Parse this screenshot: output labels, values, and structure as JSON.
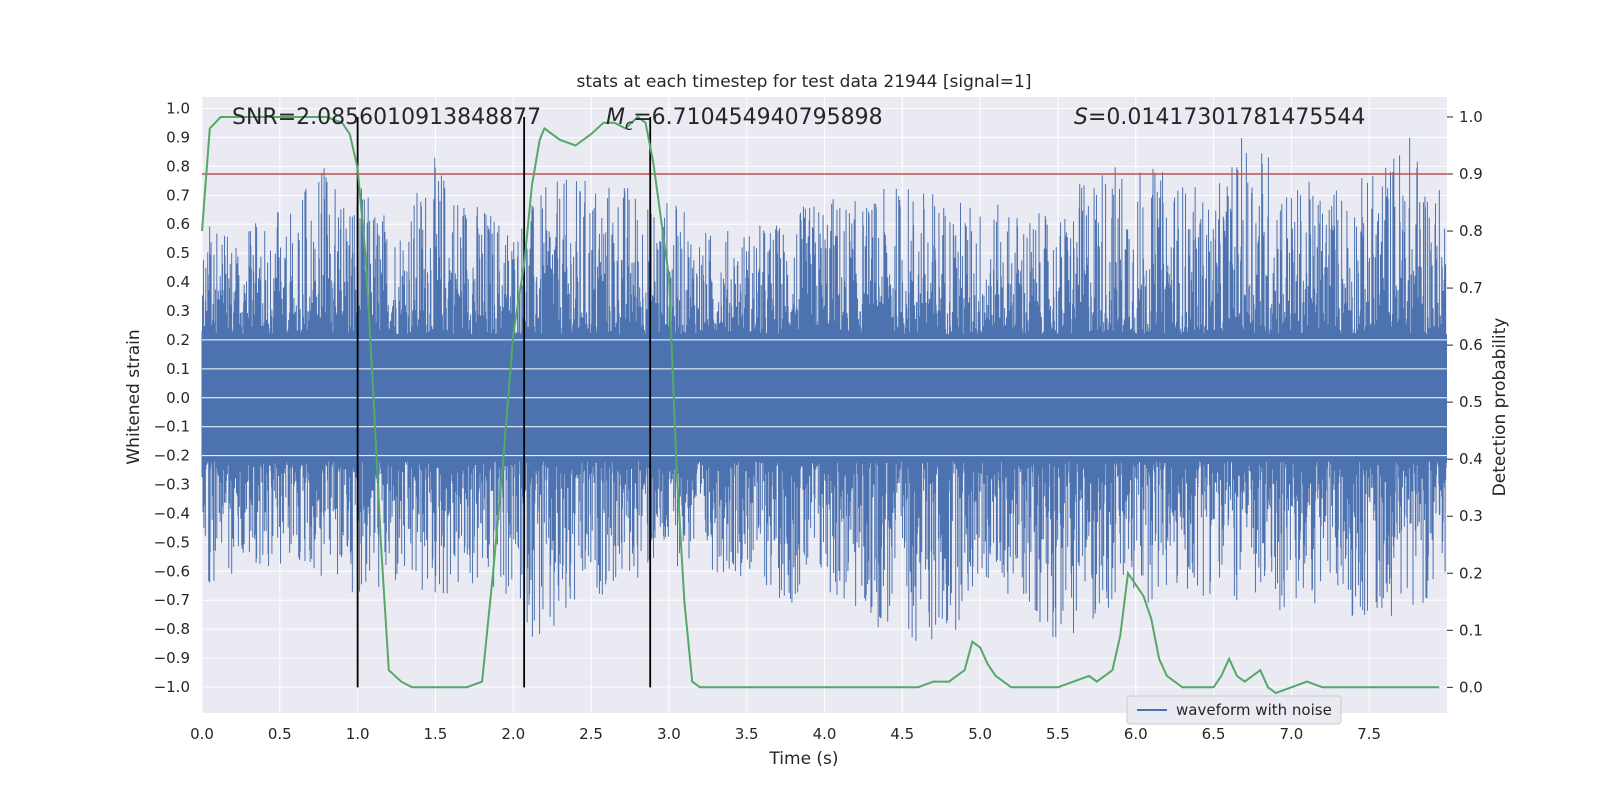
{
  "chart_data": {
    "type": "line",
    "title": "stats at each timestep for test data 21944 [signal=1]",
    "xlabel": "Time (s)",
    "ylabel": "Whitened strain",
    "y2label": "Detection probability",
    "xlim": [
      0.0,
      8.0
    ],
    "ylim": [
      -1.09,
      1.04
    ],
    "y2lim": [
      -0.045,
      1.035
    ],
    "x_ticks": [
      "0.0",
      "0.5",
      "1.0",
      "1.5",
      "2.0",
      "2.5",
      "3.0",
      "3.5",
      "4.0",
      "4.5",
      "5.0",
      "5.5",
      "6.0",
      "6.5",
      "7.0",
      "7.5"
    ],
    "y_ticks": [
      "1.0",
      "0.9",
      "0.8",
      "0.7",
      "0.6",
      "0.5",
      "0.4",
      "0.3",
      "0.2",
      "0.1",
      "0.0",
      "-0.1",
      "-0.2",
      "-0.3",
      "-0.4",
      "-0.5",
      "-0.6",
      "-0.7",
      "-0.8",
      "-0.9",
      "-1.0"
    ],
    "y2_ticks": [
      "1.0",
      "0.9",
      "0.8",
      "0.7",
      "0.6",
      "0.5",
      "0.4",
      "0.3",
      "0.2",
      "0.1",
      "0.0"
    ],
    "annotations": {
      "snr": "SNR=2.0856010913848877",
      "mc_symbol": "M",
      "mc_sub": "c",
      "mc_value": "=6.710454940795898",
      "s_symbol": "S",
      "s_value": "=0.01417301781475544"
    },
    "legend": {
      "entries": [
        "waveform with noise"
      ],
      "position": "lower-right"
    },
    "threshold_probability": 0.9,
    "vertical_markers_s": [
      1.0,
      2.07,
      2.88
    ],
    "series": [
      {
        "name": "waveform with noise",
        "color": "#4c72b0",
        "axis": "left",
        "envelope": {
          "x": [
            0.0,
            0.25,
            0.5,
            0.75,
            1.0,
            1.25,
            1.5,
            1.75,
            2.0,
            2.25,
            2.5,
            2.75,
            3.0,
            3.25,
            3.5,
            3.75,
            4.0,
            4.25,
            4.5,
            4.75,
            5.0,
            5.25,
            5.5,
            5.75,
            6.0,
            6.25,
            6.5,
            6.75,
            7.0,
            7.25,
            7.5,
            7.75,
            8.0
          ],
          "max": [
            0.6,
            0.58,
            0.65,
            0.8,
            0.75,
            0.62,
            0.84,
            0.7,
            0.62,
            0.75,
            0.78,
            0.76,
            0.7,
            0.58,
            0.6,
            0.62,
            0.72,
            0.68,
            0.76,
            0.72,
            0.68,
            0.66,
            0.62,
            0.84,
            0.82,
            0.78,
            0.7,
            0.98,
            0.74,
            0.76,
            0.78,
            0.94,
            0.68
          ],
          "min": [
            -0.65,
            -0.6,
            -0.58,
            -0.64,
            -0.68,
            -0.7,
            -0.72,
            -0.68,
            -0.72,
            -0.95,
            -0.7,
            -0.65,
            -0.58,
            -0.6,
            -0.62,
            -0.72,
            -0.68,
            -0.8,
            -0.82,
            -0.9,
            -0.65,
            -0.7,
            -0.85,
            -0.78,
            -0.72,
            -0.7,
            -0.68,
            -0.74,
            -0.76,
            -0.7,
            -0.8,
            -0.72,
            -0.7
          ]
        }
      },
      {
        "name": "",
        "color": "#55a868",
        "axis": "right",
        "x": [
          0.0,
          0.05,
          0.12,
          0.2,
          0.3,
          0.4,
          0.5,
          0.6,
          0.7,
          0.8,
          0.9,
          0.95,
          1.0,
          1.05,
          1.1,
          1.15,
          1.2,
          1.28,
          1.35,
          1.4,
          1.5,
          1.6,
          1.7,
          1.8,
          1.87,
          1.93,
          2.0,
          2.07,
          2.12,
          2.17,
          2.2,
          2.3,
          2.4,
          2.5,
          2.58,
          2.65,
          2.72,
          2.8,
          2.85,
          2.9,
          2.95,
          3.0,
          3.05,
          3.1,
          3.15,
          3.2,
          3.3,
          3.4,
          3.5,
          3.6,
          3.7,
          3.8,
          3.9,
          4.0,
          4.2,
          4.4,
          4.6,
          4.7,
          4.8,
          4.9,
          4.95,
          5.0,
          5.05,
          5.1,
          5.2,
          5.3,
          5.4,
          5.5,
          5.6,
          5.7,
          5.75,
          5.8,
          5.85,
          5.9,
          5.95,
          6.0,
          6.05,
          6.1,
          6.15,
          6.2,
          6.3,
          6.4,
          6.5,
          6.55,
          6.6,
          6.65,
          6.7,
          6.75,
          6.8,
          6.85,
          6.9,
          7.0,
          7.1,
          7.2,
          7.3,
          7.4,
          7.5,
          7.6,
          7.7,
          7.8,
          7.9,
          7.95
        ],
        "y": [
          0.8,
          0.98,
          1.0,
          1.0,
          1.0,
          1.0,
          1.0,
          1.0,
          1.0,
          1.0,
          0.99,
          0.97,
          0.91,
          0.76,
          0.52,
          0.25,
          0.03,
          0.01,
          0.0,
          0.0,
          0.0,
          0.0,
          0.0,
          0.01,
          0.2,
          0.38,
          0.62,
          0.74,
          0.88,
          0.96,
          0.98,
          0.96,
          0.95,
          0.97,
          0.99,
          0.99,
          0.98,
          1.0,
          0.99,
          0.92,
          0.82,
          0.72,
          0.38,
          0.15,
          0.01,
          0.0,
          0.0,
          0.0,
          0.0,
          0.0,
          0.0,
          0.0,
          0.0,
          0.0,
          0.0,
          0.0,
          0.0,
          0.01,
          0.01,
          0.03,
          0.08,
          0.07,
          0.04,
          0.02,
          0.0,
          0.0,
          0.0,
          0.0,
          0.01,
          0.02,
          0.01,
          0.02,
          0.03,
          0.09,
          0.2,
          0.18,
          0.16,
          0.12,
          0.05,
          0.02,
          0.0,
          0.0,
          0.0,
          0.02,
          0.05,
          0.02,
          0.01,
          0.02,
          0.03,
          0.0,
          -0.01,
          0.0,
          0.01,
          0.0,
          0.0,
          0.0,
          0.0,
          0.0,
          0.0,
          0.0,
          0.0,
          0.0
        ]
      }
    ]
  }
}
